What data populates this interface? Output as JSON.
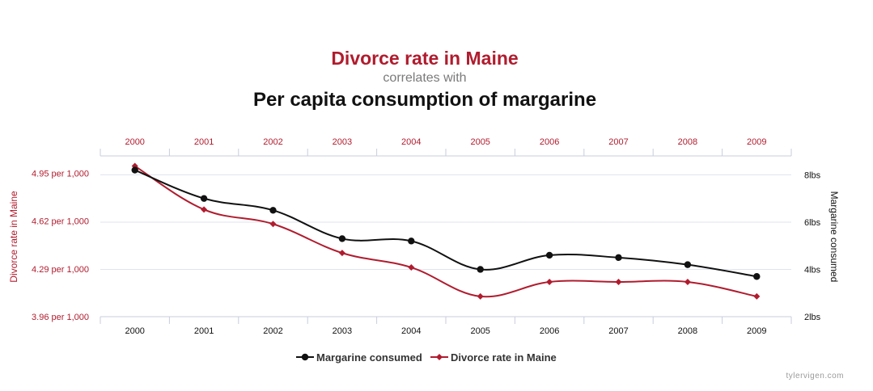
{
  "colors": {
    "divorce": "#b01c2e",
    "margarine": "#111111",
    "grid": "#dfe3ee",
    "axis": "#c8cede",
    "muted": "#8a8a8a"
  },
  "header": {
    "title": "Divorce rate in Maine",
    "connector": "correlates with",
    "subtitle": "Per capita consumption of margarine"
  },
  "footer": {
    "source": "tylervigen.com"
  },
  "chart_data": {
    "type": "line",
    "categories": [
      "2000",
      "2001",
      "2002",
      "2003",
      "2004",
      "2005",
      "2006",
      "2007",
      "2008",
      "2009"
    ],
    "series": [
      {
        "name": "Margarine consumed",
        "axis": "right",
        "unit": "lbs",
        "values": [
          8.2,
          7.0,
          6.5,
          5.3,
          5.2,
          4.0,
          4.6,
          4.5,
          4.2,
          3.7
        ]
      },
      {
        "name": "Divorce rate in Maine",
        "axis": "left",
        "unit": "per 1,000",
        "values": [
          5.0,
          4.7,
          4.6,
          4.4,
          4.3,
          4.1,
          4.2,
          4.2,
          4.2,
          4.1
        ]
      }
    ],
    "left_axis": {
      "label": "Divorce rate in Maine",
      "ticks": [
        "4.95 per 1,000",
        "4.62 per 1,000",
        "4.29 per 1,000",
        "3.96 per 1,000"
      ],
      "tick_values": [
        4.95,
        4.62,
        4.29,
        3.96
      ],
      "range": [
        3.96,
        5.07
      ]
    },
    "right_axis": {
      "label": "Margarine consumed",
      "ticks": [
        "8lbs",
        "6lbs",
        "4lbs",
        "2lbs"
      ],
      "tick_values": [
        8,
        6,
        4,
        2
      ],
      "range": [
        2,
        8.8
      ]
    },
    "grid": true,
    "legend_position": "bottom",
    "legend": [
      "Margarine consumed",
      "Divorce rate in Maine"
    ]
  }
}
